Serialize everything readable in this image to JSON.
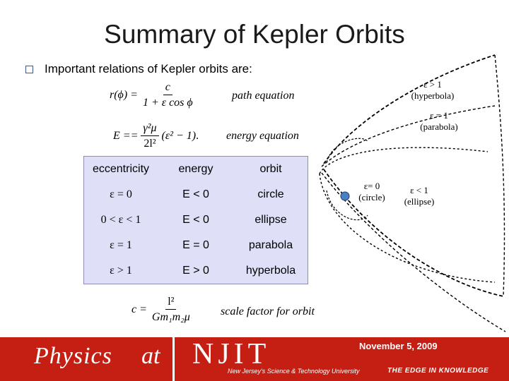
{
  "title": "Summary of Kepler Orbits",
  "bullet": "Important relations of Kepler orbits are:",
  "equations": {
    "path": {
      "lhs": "r(ϕ) =",
      "num": "c",
      "den": "1 + ε cos ϕ",
      "label": "path equation"
    },
    "energy": {
      "lhs": "E ==",
      "num": "γ²μ",
      "den": "2l²",
      "paren": "(ε² − 1)",
      "tail": ".",
      "label": "energy equation"
    },
    "scale": {
      "lhs": "c =",
      "num": "l²",
      "den": "Gm₁m₂μ",
      "label": "scale factor for orbit"
    }
  },
  "table": {
    "headers": [
      "eccentricity",
      "energy",
      "orbit"
    ],
    "rows": [
      [
        "ε = 0",
        "E < 0",
        "circle"
      ],
      [
        "0 < ε < 1",
        "E < 0",
        "ellipse"
      ],
      [
        "ε = 1",
        "E = 0",
        "parabola"
      ],
      [
        "ε > 1",
        "E > 0",
        "hyperbola"
      ]
    ]
  },
  "diagram": {
    "hyperbola": {
      "line1": "ε > 1",
      "line2": "(hyperbola)"
    },
    "parabola": {
      "line1": "ε = 1",
      "line2": "(parabola)"
    },
    "circle": {
      "line1": "ε= 0",
      "line2": "(circle)"
    },
    "ellipse": {
      "line1": "ε < 1",
      "line2": "(ellipse)"
    }
  },
  "footer": {
    "date": "November 5, 2009",
    "physics": "Physics",
    "at": "at",
    "njit": "NJIT",
    "university": "New Jersey's Science & Technology University",
    "tagline": "THE EDGE IN KNOWLEDGE"
  },
  "colors": {
    "footer": "#c51f14",
    "table_bg": "#dfe0f7",
    "focus": "#4a7fc1"
  }
}
